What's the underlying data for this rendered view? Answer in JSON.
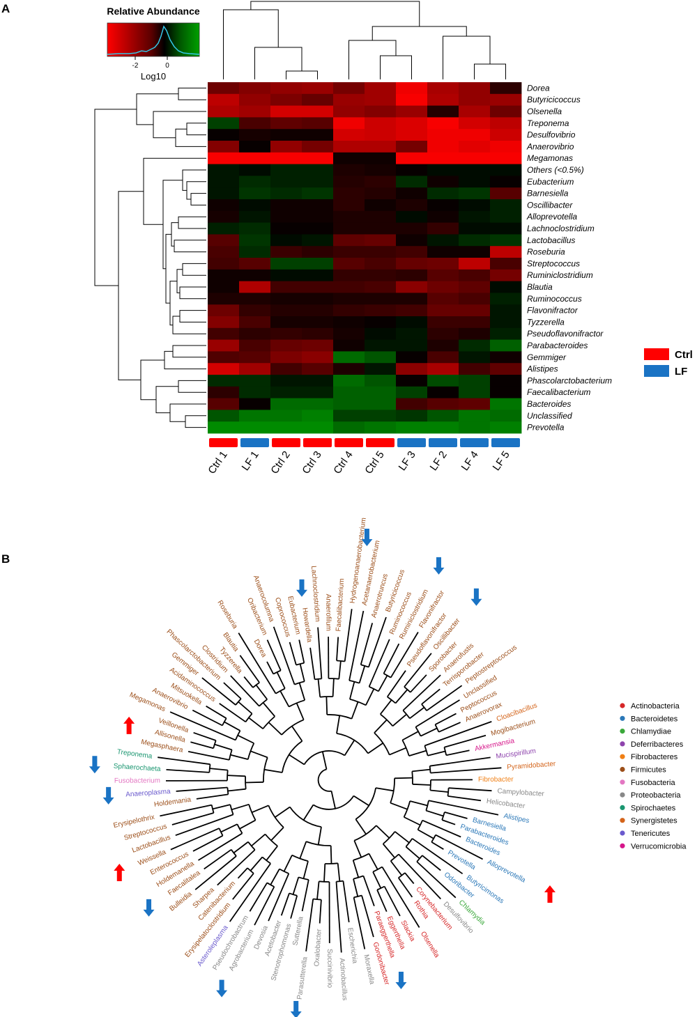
{
  "panels": {
    "a_letter": "A",
    "b_letter": "B"
  },
  "colors": {
    "ctrl": "#ff0000",
    "lf": "#1a73c4",
    "low": "#ff0000",
    "mid": "#000000",
    "high": "#00a000",
    "up_arrow": "#ff0000",
    "down_arrow": "#1a73c4"
  },
  "color_key": {
    "title": "Relative Abundance",
    "xlabel": "Log10",
    "ticks": [
      "-2",
      "0"
    ]
  },
  "chart_data": [
    {
      "type": "heatmap",
      "title": "",
      "samples": [
        "Ctrl 1",
        "LF 1",
        "Ctrl 2",
        "Ctrl 3",
        "Ctrl 4",
        "Ctrl 5",
        "LF 3",
        "LF 2",
        "LF 4",
        "LF 5"
      ],
      "sample_groups": [
        "Ctrl",
        "LF",
        "Ctrl",
        "Ctrl",
        "Ctrl",
        "Ctrl",
        "LF",
        "LF",
        "LF",
        "LF"
      ],
      "groups": [
        {
          "name": "Ctrl",
          "color": "#ff0000"
        },
        {
          "name": "LF",
          "color": "#1a73c4"
        }
      ],
      "legend_position": "right",
      "value_unit": "Log10 relative abundance (z-scaled)",
      "color_scale": {
        "low": "#ff0000",
        "mid": "#000000",
        "high": "#00a000",
        "range": [
          -3.5,
          1.5
        ]
      },
      "genera": [
        "Dorea",
        "Butyricicoccus",
        "Olsenella",
        "Treponema",
        "Desulfovibrio",
        "Anaerovibrio",
        "Megamonas",
        "Others (<0.5%)",
        "Eubacterium",
        "Barnesiella",
        "Oscillibacter",
        "Alloprevotella",
        "Lachnoclostridium",
        "Lactobacillus",
        "Roseburia",
        "Streptococcus",
        "Ruminiclostridium",
        "Blautia",
        "Ruminococcus",
        "Flavonifractor",
        "Tyzzerella",
        "Pseudoflavonifractor",
        "Parabacteroides",
        "Gemmiger",
        "Alistipes",
        "Phascolarctobacterium",
        "Faecalibacterium",
        "Bacteroides",
        "Unclassified",
        "Prevotella"
      ],
      "values": [
        [
          -1.5,
          -1.8,
          -2.0,
          -2.1,
          -1.6,
          -2.2,
          -3.3,
          -2.3,
          -2.0,
          -0.6
        ],
        [
          -2.6,
          -2.0,
          -1.7,
          -1.4,
          -2.1,
          -2.2,
          -3.4,
          -2.4,
          -2.0,
          -2.1
        ],
        [
          -2.4,
          -2.2,
          -2.9,
          -2.9,
          -2.0,
          -1.8,
          -2.1,
          -0.5,
          -2.3,
          -1.5
        ],
        [
          0.6,
          -1.0,
          -1.3,
          -1.2,
          -3.3,
          -2.8,
          -3.0,
          -3.4,
          -2.9,
          -2.6
        ],
        [
          -0.1,
          -0.3,
          -0.2,
          -0.2,
          -2.9,
          -2.8,
          -3.0,
          -3.3,
          -3.3,
          -2.8
        ],
        [
          -1.8,
          -0.1,
          -2.0,
          -1.6,
          -2.4,
          -2.4,
          -1.6,
          -3.3,
          -3.1,
          -3.3
        ],
        [
          -3.4,
          -3.4,
          -3.4,
          -3.4,
          -0.2,
          -0.2,
          -3.4,
          -3.4,
          -3.4,
          -3.4
        ],
        [
          0.2,
          0.1,
          0.3,
          0.3,
          -0.4,
          -0.3,
          -0.1,
          0.1,
          0.1,
          0.1
        ],
        [
          0.2,
          0.4,
          0.3,
          0.3,
          -0.5,
          -0.6,
          0.4,
          -0.2,
          0.1,
          -0.1
        ],
        [
          0.2,
          0.5,
          0.4,
          0.5,
          -0.6,
          -0.5,
          -0.2,
          0.4,
          0.5,
          -1.2
        ],
        [
          -0.2,
          0.1,
          -0.2,
          -0.2,
          -0.6,
          -0.2,
          -0.4,
          -0.1,
          0.1,
          0.3
        ],
        [
          -0.3,
          0.2,
          -0.2,
          -0.2,
          -0.4,
          -0.4,
          0.1,
          -0.2,
          0.2,
          0.3
        ],
        [
          0.3,
          0.4,
          -0.1,
          -0.1,
          -0.4,
          -0.4,
          -0.4,
          -0.7,
          0.1,
          0.1
        ],
        [
          -1.2,
          0.5,
          0.1,
          0.2,
          -1.3,
          -1.4,
          -0.2,
          0.2,
          0.4,
          0.5
        ],
        [
          -1.0,
          0.4,
          -0.8,
          -0.6,
          -0.8,
          -0.8,
          -0.9,
          -0.2,
          -0.2,
          -2.6
        ],
        [
          -0.9,
          -1.2,
          0.6,
          0.6,
          -1.2,
          -1.0,
          -1.4,
          -1.5,
          -2.6,
          -1.0
        ],
        [
          -0.2,
          -0.2,
          0.1,
          0.1,
          -0.7,
          -0.7,
          -0.6,
          -1.2,
          -1.0,
          -1.6
        ],
        [
          -0.2,
          -2.4,
          -0.9,
          -0.9,
          -0.9,
          -1.0,
          -1.9,
          -1.5,
          -1.3,
          0.1
        ],
        [
          -0.4,
          -0.4,
          -0.3,
          -0.3,
          -0.4,
          -0.4,
          -0.4,
          -1.2,
          -1.0,
          0.3
        ],
        [
          -1.5,
          -0.7,
          -0.5,
          -0.5,
          -0.7,
          -0.8,
          -0.9,
          -1.4,
          -1.4,
          0.2
        ],
        [
          -1.8,
          -1.0,
          -0.3,
          -0.3,
          -0.2,
          -0.1,
          0.1,
          -0.8,
          -0.8,
          0.2
        ],
        [
          -0.9,
          -0.6,
          -0.7,
          -0.6,
          -0.3,
          0.1,
          0.2,
          -0.6,
          -0.4,
          0.3
        ],
        [
          -2.1,
          -1.0,
          -1.4,
          -1.5,
          -0.2,
          0.2,
          0.2,
          -0.4,
          0.4,
          0.9
        ],
        [
          -1.1,
          -1.2,
          -1.7,
          -1.9,
          1.0,
          0.8,
          -0.1,
          -1.0,
          0.2,
          -0.2
        ],
        [
          -2.9,
          -2.2,
          -0.9,
          -1.2,
          -0.4,
          0.2,
          -1.9,
          -2.3,
          -0.9,
          -1.3
        ],
        [
          0.4,
          0.4,
          0.2,
          0.2,
          1.0,
          0.8,
          -0.1,
          0.7,
          0.6,
          -0.1
        ],
        [
          -0.6,
          0.4,
          0.3,
          0.3,
          0.9,
          0.9,
          0.6,
          -0.1,
          0.6,
          -0.1
        ],
        [
          -1.2,
          -0.1,
          1.0,
          1.0,
          0.9,
          0.9,
          -0.9,
          -1.2,
          -1.3,
          1.1
        ],
        [
          0.8,
          1.1,
          1.1,
          1.2,
          0.6,
          0.6,
          0.5,
          0.8,
          1.1,
          1.0
        ],
        [
          1.3,
          1.3,
          1.3,
          1.3,
          1.0,
          1.1,
          1.2,
          1.2,
          1.1,
          1.2
        ]
      ]
    }
  ],
  "tree": {
    "phylum_legend": [
      {
        "name": "Actinobacteria",
        "color": "#d62728"
      },
      {
        "name": "Bacteroidetes",
        "color": "#2b78b8"
      },
      {
        "name": "Chlamydiae",
        "color": "#3aa83a"
      },
      {
        "name": "Deferribacteres",
        "color": "#8e44ad"
      },
      {
        "name": "Fibrobacteres",
        "color": "#f07f14"
      },
      {
        "name": "Firmicutes",
        "color": "#9c4f1a"
      },
      {
        "name": "Fusobacteria",
        "color": "#e377c2"
      },
      {
        "name": "Proteobacteria",
        "color": "#888888"
      },
      {
        "name": "Spirochaetes",
        "color": "#1a9670"
      },
      {
        "name": "Synergistetes",
        "color": "#d4641a"
      },
      {
        "name": "Tenericutes",
        "color": "#6a5acd"
      },
      {
        "name": "Verrucomicrobia",
        "color": "#d6168a"
      }
    ],
    "leaves": [
      {
        "name": "Akkermansia",
        "phylum": 11,
        "arrow": ""
      },
      {
        "name": "Mogibacterium",
        "phylum": 5,
        "arrow": ""
      },
      {
        "name": "Cloacibacillus",
        "phylum": 9,
        "arrow": ""
      },
      {
        "name": "Anaerovorax",
        "phylum": 5,
        "arrow": ""
      },
      {
        "name": "Peptococcus",
        "phylum": 5,
        "arrow": ""
      },
      {
        "name": "Unclassified",
        "phylum": 5,
        "arrow": ""
      },
      {
        "name": "Peptostreptococcus",
        "phylum": 5,
        "arrow": ""
      },
      {
        "name": "Terrisporobacter",
        "phylum": 5,
        "arrow": ""
      },
      {
        "name": "Anaerofustis",
        "phylum": 5,
        "arrow": ""
      },
      {
        "name": "Sporobacter",
        "phylum": 5,
        "arrow": ""
      },
      {
        "name": "Oscillibacter",
        "phylum": 5,
        "arrow": "down"
      },
      {
        "name": "Pseudoflavonifractor",
        "phylum": 5,
        "arrow": ""
      },
      {
        "name": "Flavonifractor",
        "phylum": 5,
        "arrow": ""
      },
      {
        "name": "Ruminiclostridium",
        "phylum": 5,
        "arrow": "down"
      },
      {
        "name": "Ruminococcus",
        "phylum": 5,
        "arrow": ""
      },
      {
        "name": "Butyricicoccus",
        "phylum": 5,
        "arrow": ""
      },
      {
        "name": "Anaerotruncus",
        "phylum": 5,
        "arrow": ""
      },
      {
        "name": "Acetanaerobacterium",
        "phylum": 5,
        "arrow": ""
      },
      {
        "name": "Hydrogenoanaerobacterium",
        "phylum": 5,
        "arrow": "down"
      },
      {
        "name": "Faecalibacterium",
        "phylum": 5,
        "arrow": ""
      },
      {
        "name": "Anaerofilum",
        "phylum": 5,
        "arrow": ""
      },
      {
        "name": "Lachnoclostridium",
        "phylum": 5,
        "arrow": ""
      },
      {
        "name": "Howardella",
        "phylum": 5,
        "arrow": "down"
      },
      {
        "name": "Eubacterium",
        "phylum": 5,
        "arrow": ""
      },
      {
        "name": "Coprococcus",
        "phylum": 5,
        "arrow": ""
      },
      {
        "name": "Anaerocolumna",
        "phylum": 5,
        "arrow": ""
      },
      {
        "name": "Oribacterium",
        "phylum": 5,
        "arrow": ""
      },
      {
        "name": "Dorea",
        "phylum": 5,
        "arrow": ""
      },
      {
        "name": "Roseburia",
        "phylum": 5,
        "arrow": ""
      },
      {
        "name": "Blautia",
        "phylum": 5,
        "arrow": ""
      },
      {
        "name": "Tyzzerella",
        "phylum": 5,
        "arrow": ""
      },
      {
        "name": "Clostridium",
        "phylum": 5,
        "arrow": ""
      },
      {
        "name": "Phascolarctobacterium",
        "phylum": 5,
        "arrow": ""
      },
      {
        "name": "Gemmiger",
        "phylum": 5,
        "arrow": ""
      },
      {
        "name": "Acidaminococcus",
        "phylum": 5,
        "arrow": ""
      },
      {
        "name": "Mitsuokella",
        "phylum": 5,
        "arrow": ""
      },
      {
        "name": "Anaerovibrio",
        "phylum": 5,
        "arrow": ""
      },
      {
        "name": "Megamonas",
        "phylum": 5,
        "arrow": ""
      },
      {
        "name": "Veillonella",
        "phylum": 5,
        "arrow": ""
      },
      {
        "name": "Allisonella",
        "phylum": 5,
        "arrow": "up"
      },
      {
        "name": "Megasphaera",
        "phylum": 5,
        "arrow": ""
      },
      {
        "name": "Treponema",
        "phylum": 8,
        "arrow": ""
      },
      {
        "name": "Sphaerochaeta",
        "phylum": 8,
        "arrow": "down"
      },
      {
        "name": "Fusobacterium",
        "phylum": 6,
        "arrow": ""
      },
      {
        "name": "Anaeroplasma",
        "phylum": 10,
        "arrow": "down"
      },
      {
        "name": "Holdemania",
        "phylum": 5,
        "arrow": ""
      },
      {
        "name": "Erysipelothrix",
        "phylum": 5,
        "arrow": ""
      },
      {
        "name": "Streptococcus",
        "phylum": 5,
        "arrow": ""
      },
      {
        "name": "Lactobacillus",
        "phylum": 5,
        "arrow": ""
      },
      {
        "name": "Weissella",
        "phylum": 5,
        "arrow": "up"
      },
      {
        "name": "Enterococcus",
        "phylum": 5,
        "arrow": ""
      },
      {
        "name": "Holdemanella",
        "phylum": 5,
        "arrow": ""
      },
      {
        "name": "Faecalitalea",
        "phylum": 5,
        "arrow": "down"
      },
      {
        "name": "Bulleidia",
        "phylum": 5,
        "arrow": ""
      },
      {
        "name": "Sharpea",
        "phylum": 5,
        "arrow": ""
      },
      {
        "name": "Catenibacterium",
        "phylum": 5,
        "arrow": ""
      },
      {
        "name": "Erysipelatoclostridium",
        "phylum": 5,
        "arrow": ""
      },
      {
        "name": "Asteroleplasma",
        "phylum": 10,
        "arrow": ""
      },
      {
        "name": "Pseudochrobactrum",
        "phylum": 7,
        "arrow": ""
      },
      {
        "name": "Agrobacterium",
        "phylum": 7,
        "arrow": "down"
      },
      {
        "name": "Devosia",
        "phylum": 7,
        "arrow": ""
      },
      {
        "name": "Acetobacter",
        "phylum": 7,
        "arrow": ""
      },
      {
        "name": "Stenotrophomonas",
        "phylum": 7,
        "arrow": ""
      },
      {
        "name": "Sutterella",
        "phylum": 7,
        "arrow": ""
      },
      {
        "name": "Parasutterella",
        "phylum": 7,
        "arrow": "down"
      },
      {
        "name": "Oxalobacter",
        "phylum": 7,
        "arrow": ""
      },
      {
        "name": "Succinivibrio",
        "phylum": 7,
        "arrow": ""
      },
      {
        "name": "Actinobacillus",
        "phylum": 7,
        "arrow": ""
      },
      {
        "name": "Escherichia",
        "phylum": 7,
        "arrow": ""
      },
      {
        "name": "Moraxella",
        "phylum": 7,
        "arrow": ""
      },
      {
        "name": "Gordonibacter",
        "phylum": 0,
        "arrow": ""
      },
      {
        "name": "Paraeggerthella",
        "phylum": 0,
        "arrow": "down"
      },
      {
        "name": "Eggerthella",
        "phylum": 0,
        "arrow": ""
      },
      {
        "name": "Slackia",
        "phylum": 0,
        "arrow": ""
      },
      {
        "name": "Olsenella",
        "phylum": 0,
        "arrow": ""
      },
      {
        "name": "Rothia",
        "phylum": 0,
        "arrow": ""
      },
      {
        "name": "Corynebacterium",
        "phylum": 0,
        "arrow": ""
      },
      {
        "name": "Desulfovibrio",
        "phylum": 7,
        "arrow": ""
      },
      {
        "name": "Chlamydia",
        "phylum": 2,
        "arrow": ""
      },
      {
        "name": "Odoribacter",
        "phylum": 1,
        "arrow": ""
      },
      {
        "name": "Butyricimonas",
        "phylum": 1,
        "arrow": ""
      },
      {
        "name": "Prevotella",
        "phylum": 1,
        "arrow": ""
      },
      {
        "name": "Alloprevotella",
        "phylum": 1,
        "arrow": "up"
      },
      {
        "name": "Bacteroides",
        "phylum": 1,
        "arrow": ""
      },
      {
        "name": "Parabacteroides",
        "phylum": 1,
        "arrow": ""
      },
      {
        "name": "Barnesiella",
        "phylum": 1,
        "arrow": ""
      },
      {
        "name": "Alistipes",
        "phylum": 1,
        "arrow": ""
      },
      {
        "name": "Helicobacter",
        "phylum": 7,
        "arrow": ""
      },
      {
        "name": "Campylobacter",
        "phylum": 7,
        "arrow": ""
      },
      {
        "name": "Fibrobacter",
        "phylum": 4,
        "arrow": ""
      },
      {
        "name": "Pyramidobacter",
        "phylum": 9,
        "arrow": ""
      },
      {
        "name": "Mucispirillum",
        "phylum": 3,
        "arrow": ""
      }
    ]
  }
}
